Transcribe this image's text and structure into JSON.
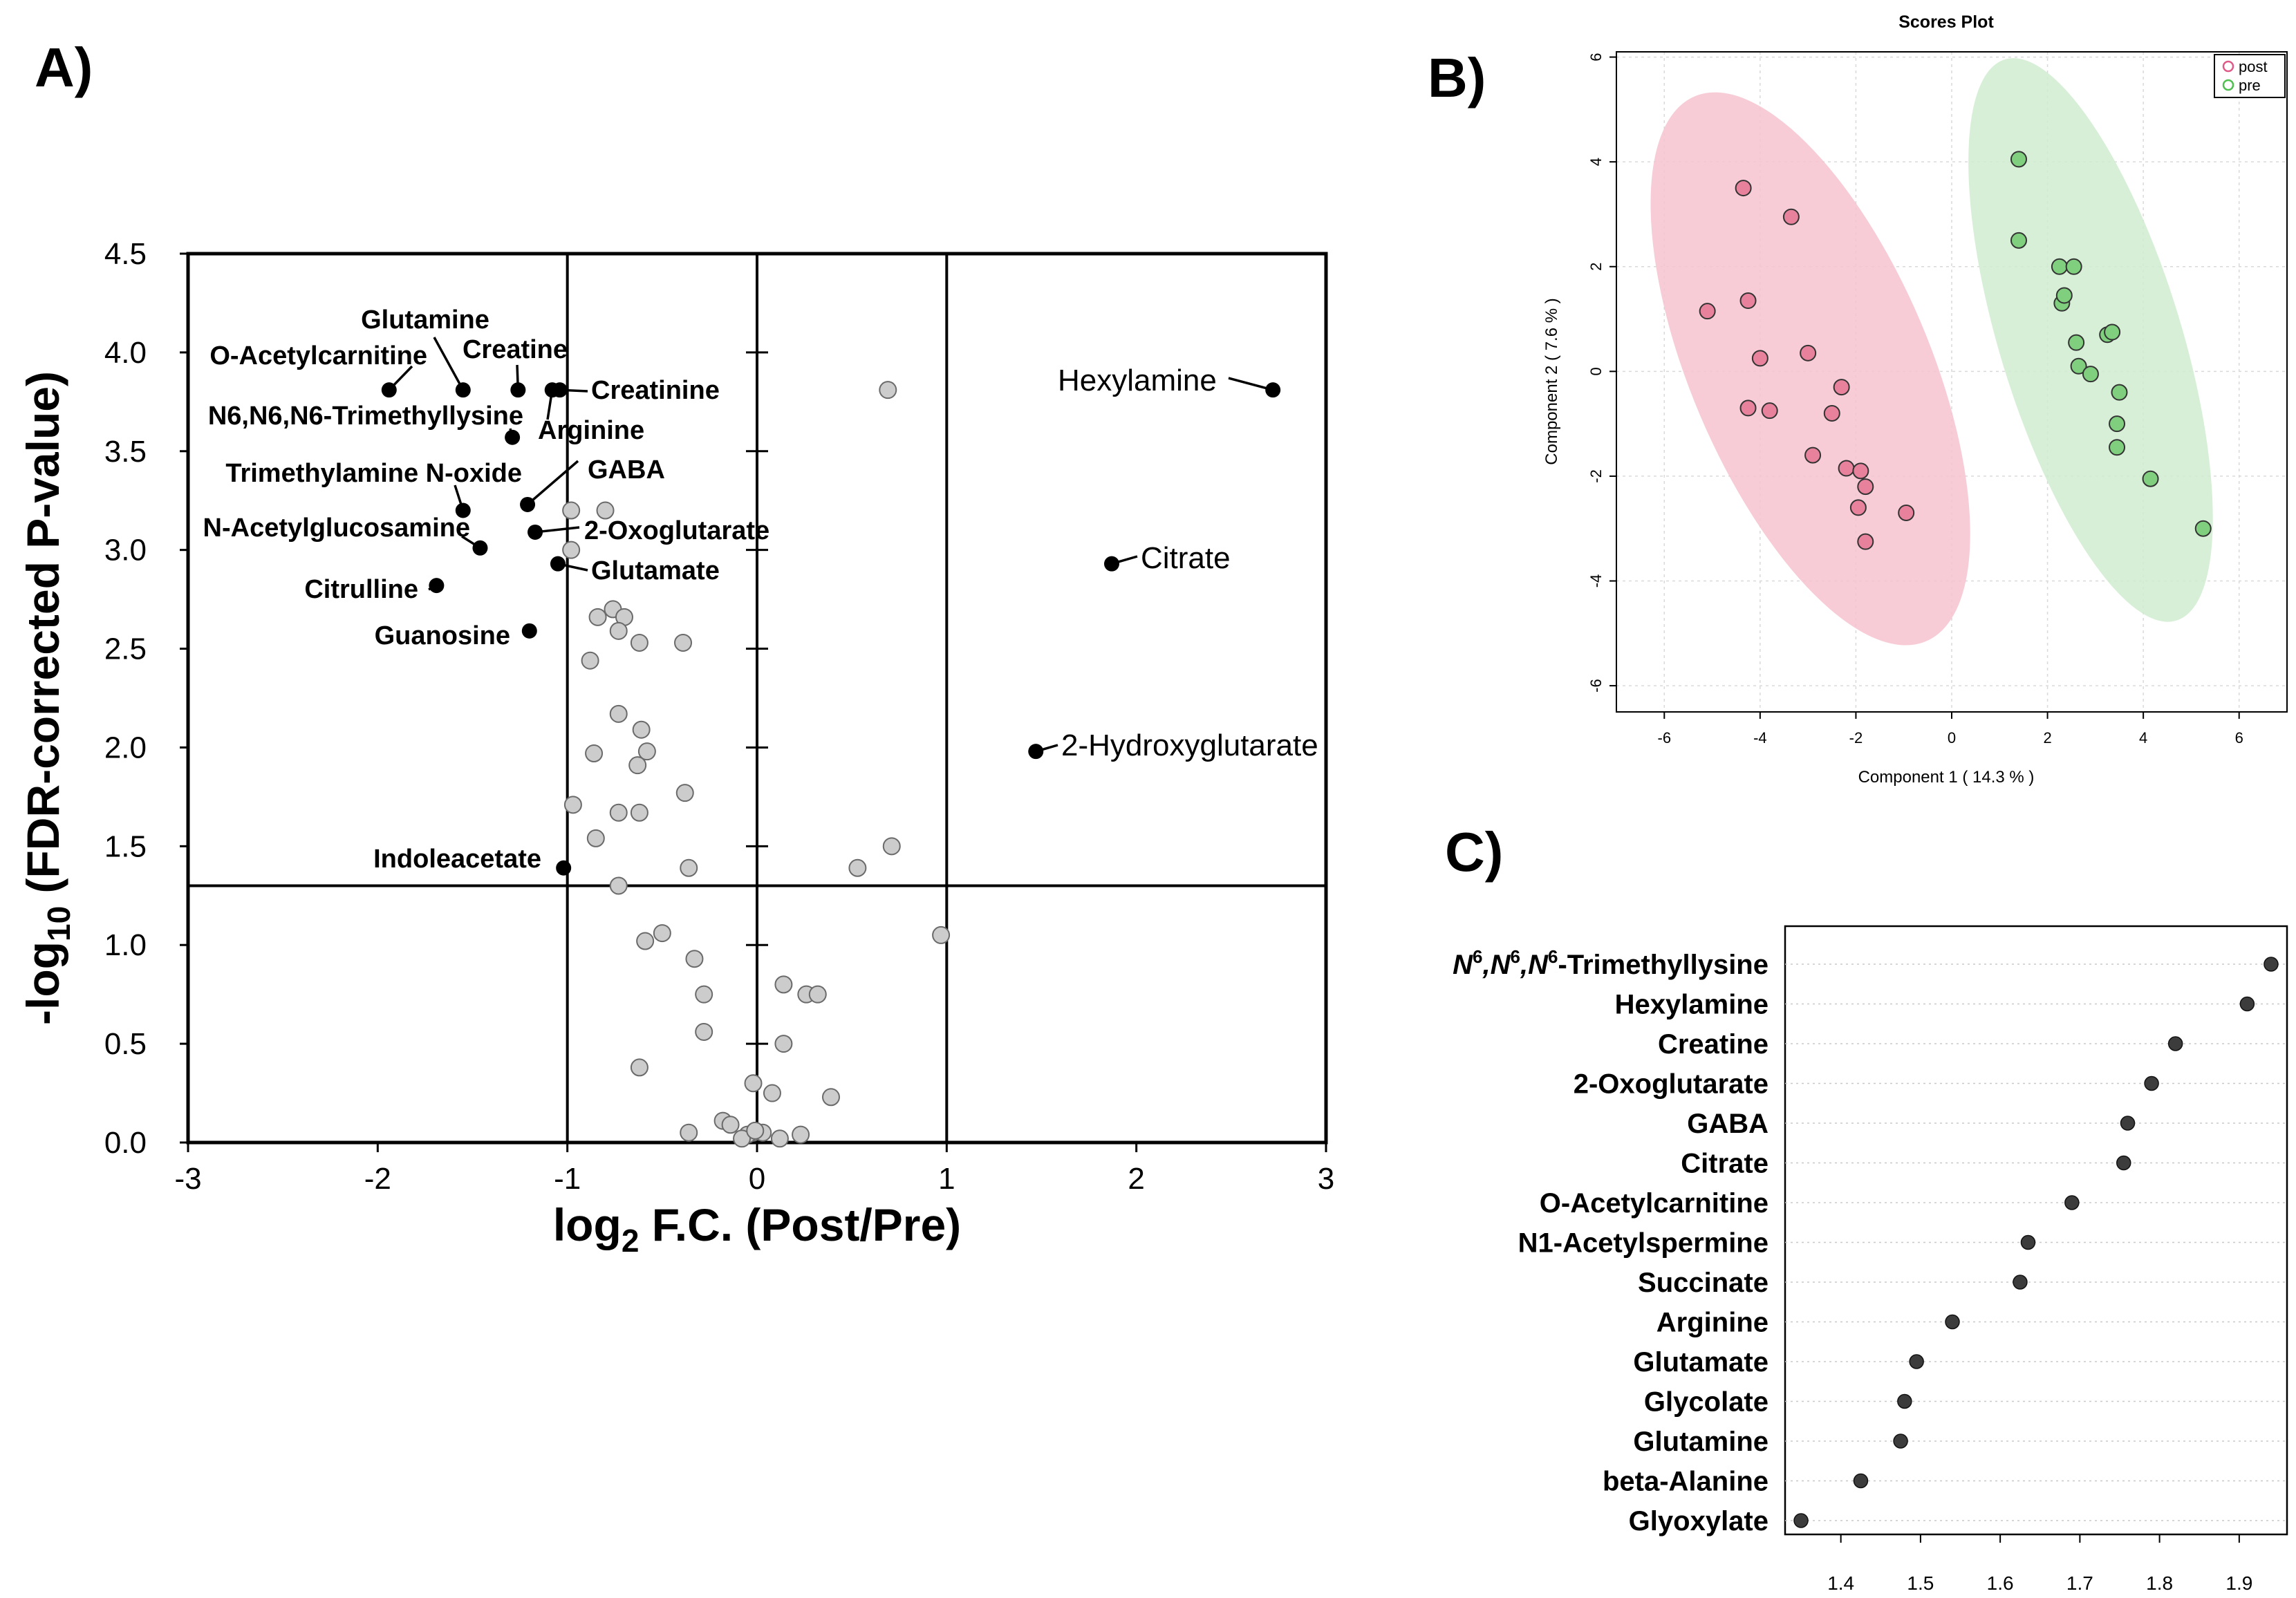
{
  "panel_labels": {
    "a": "A)",
    "b": "B)",
    "c": "C)"
  },
  "colors": {
    "sig": "#000000",
    "nonsig": "#cccccc",
    "post_fill": "#e8829c",
    "pre_fill": "#7fcf7f",
    "post_ellipse": "#f6c3cf",
    "pre_ellipse": "#cfeccf",
    "post_legend": "#df5a88",
    "pre_legend": "#4fbf4f",
    "vip_dot": "#3c3c3c"
  },
  "chart_data": [
    {
      "id": "volcano",
      "type": "scatter",
      "title": "",
      "xlabel": {
        "main": "log",
        "sub": "2",
        "rest": " F.C. (Post/Pre)"
      },
      "ylabel": {
        "main": "-log",
        "sub": "10",
        "rest": " (FDR-corrected P-value)"
      },
      "xlim": [
        -3,
        3
      ],
      "ylim": [
        0,
        4.5
      ],
      "xticks": [
        -3,
        -2,
        -1,
        0,
        1,
        2,
        3
      ],
      "xtick_labels": [
        "-3",
        "-2",
        "-1",
        "0",
        "1",
        "2",
        "3"
      ],
      "yticks": [
        0,
        0.5,
        1,
        1.5,
        2,
        2.5,
        3,
        3.5,
        4,
        4.5
      ],
      "ytick_labels": [
        "0.0",
        "0.5",
        "1.0",
        "1.5",
        "2.0",
        "2.5",
        "3.0",
        "3.5",
        "4.0",
        "4.5"
      ],
      "vlines": [
        -1,
        0,
        1
      ],
      "hline": 1.3,
      "significant": [
        {
          "label": "Hexylamine",
          "x": 2.72,
          "y": 3.81
        },
        {
          "label": "Citrate",
          "x": 1.87,
          "y": 2.93
        },
        {
          "label": "2-Hydroxyglutarate",
          "x": 1.47,
          "y": 1.98
        },
        {
          "label": "O-Acetylcarnitine",
          "x": -1.94,
          "y": 3.81
        },
        {
          "label": "Glutamine",
          "x": -1.55,
          "y": 3.81
        },
        {
          "label": "Creatine",
          "x": -1.26,
          "y": 3.81
        },
        {
          "label": "Arginine",
          "x": -1.08,
          "y": 3.81
        },
        {
          "label": "Creatinine",
          "x": -1.04,
          "y": 3.81
        },
        {
          "label": "N6,N6,N6-Trimethyllysine",
          "x": -1.29,
          "y": 3.57
        },
        {
          "label": "GABA",
          "x": -1.21,
          "y": 3.23
        },
        {
          "label": "Trimethylamine N-oxide",
          "x": -1.55,
          "y": 3.2
        },
        {
          "label": "2-Oxoglutarate",
          "x": -1.17,
          "y": 3.09
        },
        {
          "label": "N-Acetylglucosamine",
          "x": -1.46,
          "y": 3.01
        },
        {
          "label": "Glutamate",
          "x": -1.05,
          "y": 2.93
        },
        {
          "label": "Citrulline",
          "x": -1.69,
          "y": 2.82
        },
        {
          "label": "Guanosine",
          "x": -1.2,
          "y": 2.59
        },
        {
          "label": "Indoleacetate",
          "x": -1.02,
          "y": 1.39
        }
      ],
      "nonsignificant": [
        [
          0.69,
          3.81
        ],
        [
          -0.98,
          3.2
        ],
        [
          -0.8,
          3.2
        ],
        [
          -0.98,
          3.0
        ],
        [
          -0.76,
          2.7
        ],
        [
          -0.84,
          2.66
        ],
        [
          -0.7,
          2.66
        ],
        [
          -0.73,
          2.59
        ],
        [
          -0.62,
          2.53
        ],
        [
          -0.39,
          2.53
        ],
        [
          -0.88,
          2.44
        ],
        [
          -0.73,
          2.17
        ],
        [
          -0.61,
          2.09
        ],
        [
          -0.58,
          1.98
        ],
        [
          -0.86,
          1.97
        ],
        [
          -0.63,
          1.91
        ],
        [
          -0.38,
          1.77
        ],
        [
          -0.97,
          1.71
        ],
        [
          -0.73,
          1.67
        ],
        [
          -0.62,
          1.67
        ],
        [
          -0.85,
          1.54
        ],
        [
          0.71,
          1.5
        ],
        [
          0.53,
          1.39
        ],
        [
          -0.36,
          1.39
        ],
        [
          -0.73,
          1.3
        ],
        [
          0.97,
          1.05
        ],
        [
          -0.5,
          1.06
        ],
        [
          -0.59,
          1.02
        ],
        [
          -0.33,
          0.93
        ],
        [
          0.14,
          0.8
        ],
        [
          -0.28,
          0.75
        ],
        [
          0.26,
          0.75
        ],
        [
          0.32,
          0.75
        ],
        [
          -0.28,
          0.56
        ],
        [
          0.14,
          0.5
        ],
        [
          -0.62,
          0.38
        ],
        [
          -0.02,
          0.3
        ],
        [
          0.39,
          0.23
        ],
        [
          0.08,
          0.25
        ],
        [
          -0.18,
          0.11
        ],
        [
          -0.14,
          0.09
        ],
        [
          -0.36,
          0.05
        ],
        [
          -0.02,
          0.05
        ],
        [
          0.03,
          0.05
        ],
        [
          -0.05,
          0.04
        ],
        [
          -0.08,
          0.02
        ],
        [
          0.12,
          0.02
        ],
        [
          0.23,
          0.04
        ],
        [
          -0.01,
          0.06
        ]
      ]
    },
    {
      "id": "pca",
      "type": "scatter",
      "title": "Scores Plot",
      "xlabel": "Component 1 ( 14.3 % )",
      "ylabel": "Component 2 ( 7.6 % )",
      "xlim": [
        -7,
        7
      ],
      "ylim": [
        -6.5,
        6.1
      ],
      "xticks": [
        -6,
        -4,
        -2,
        0,
        2,
        4,
        6
      ],
      "xtick_labels": [
        "-6",
        "-4",
        "-2",
        "0",
        "2",
        "4",
        "6"
      ],
      "yticks": [
        -6,
        -4,
        -2,
        0,
        2,
        4,
        6
      ],
      "ytick_labels": [
        "-6",
        "-4",
        "-2",
        "0",
        "2",
        "4",
        "6"
      ],
      "legend": {
        "position": "top-right",
        "entries": [
          "post",
          "pre"
        ]
      },
      "series": [
        {
          "name": "post",
          "points": [
            [
              -4.35,
              3.5
            ],
            [
              -3.35,
              2.95
            ],
            [
              -5.1,
              1.15
            ],
            [
              -4.25,
              1.35
            ],
            [
              -4.0,
              0.25
            ],
            [
              -3.0,
              0.35
            ],
            [
              -2.3,
              -0.3
            ],
            [
              -4.25,
              -0.7
            ],
            [
              -3.8,
              -0.75
            ],
            [
              -2.5,
              -0.8
            ],
            [
              -2.9,
              -1.6
            ],
            [
              -2.2,
              -1.85
            ],
            [
              -1.9,
              -1.9
            ],
            [
              -1.8,
              -2.2
            ],
            [
              -1.95,
              -2.6
            ],
            [
              -0.95,
              -2.7
            ],
            [
              -1.8,
              -3.25
            ]
          ],
          "ellipse": {
            "cx": -2.95,
            "cy": 0.05,
            "rx": 2.5,
            "ry": 5.65,
            "tilt_deg": -23
          }
        },
        {
          "name": "pre",
          "points": [
            [
              1.4,
              4.05
            ],
            [
              1.4,
              2.5
            ],
            [
              2.25,
              2.0
            ],
            [
              2.55,
              2.0
            ],
            [
              2.3,
              1.3
            ],
            [
              2.35,
              1.45
            ],
            [
              3.25,
              0.7
            ],
            [
              3.35,
              0.75
            ],
            [
              2.6,
              0.55
            ],
            [
              2.65,
              0.1
            ],
            [
              2.9,
              -0.05
            ],
            [
              3.5,
              -0.4
            ],
            [
              3.45,
              -1.0
            ],
            [
              3.45,
              -1.45
            ],
            [
              4.15,
              -2.05
            ],
            [
              5.25,
              -3.0
            ]
          ],
          "ellipse": {
            "cx": 2.9,
            "cy": 0.6,
            "rx": 1.9,
            "ry": 5.6,
            "tilt_deg": -17
          }
        }
      ]
    },
    {
      "id": "vip",
      "type": "scatter",
      "title": "",
      "xlabel": "",
      "xlim": [
        1.33,
        1.96
      ],
      "xticks": [
        1.4,
        1.5,
        1.6,
        1.7,
        1.8,
        1.9
      ],
      "xtick_labels": [
        "1.4",
        "1.5",
        "1.6",
        "1.7",
        "1.8",
        "1.9"
      ],
      "categories": [
        "N6,N6,N6-Trimethyllysine",
        "Hexylamine",
        "Creatine",
        "2-Oxoglutarate",
        "GABA",
        "Citrate",
        "O-Acetylcarnitine",
        "N1-Acetylspermine",
        "Succinate",
        "Arginine",
        "Glutamate",
        "Glycolate",
        "Glutamine",
        "beta-Alanine",
        "Glyoxylate"
      ],
      "first_label_parts": [
        "N",
        "6",
        ",N",
        "6",
        ",N",
        "6",
        "-Trimethyllysine"
      ],
      "values": [
        1.94,
        1.91,
        1.82,
        1.79,
        1.76,
        1.755,
        1.69,
        1.635,
        1.625,
        1.54,
        1.495,
        1.48,
        1.475,
        1.425,
        1.35
      ]
    }
  ]
}
